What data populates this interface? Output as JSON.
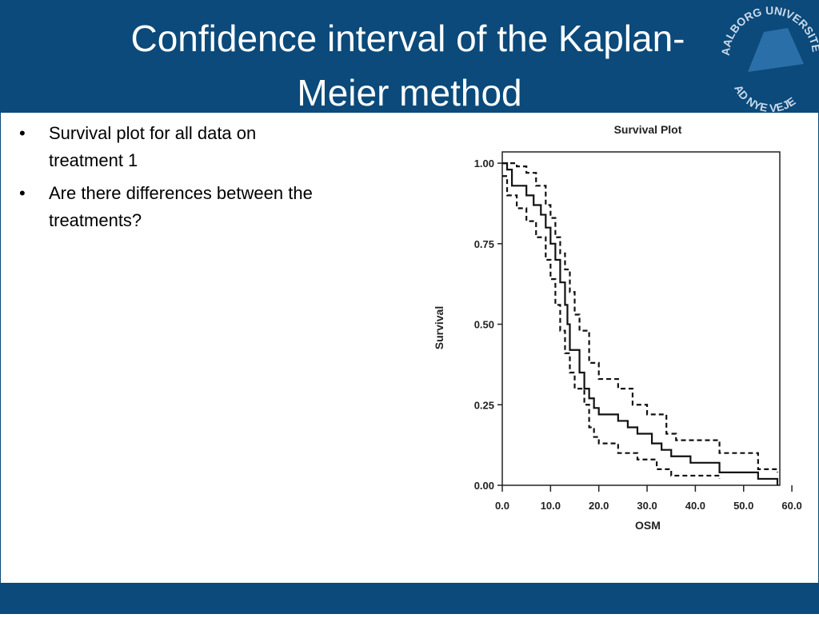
{
  "slide": {
    "title": [
      "Confidence interval of the Kaplan-",
      "Meier method"
    ],
    "bullets": [
      [
        "Survival plot for all data on",
        "treatment 1"
      ],
      [
        "Are there differences between the",
        "treatments?"
      ]
    ],
    "logo": [
      "AALBORG UNIVERSITET",
      "AD NYE VEJE"
    ]
  },
  "chart_data": {
    "type": "line",
    "step": true,
    "title": "Survival Plot",
    "x_label": "OSM",
    "y_label": "Survival",
    "xlim": [
      0,
      57.5
    ],
    "ylim": [
      0,
      1.035
    ],
    "xticks": [
      {
        "value": 0,
        "label": "0.0"
      },
      {
        "value": 10,
        "label": "10.0"
      },
      {
        "value": 20,
        "label": "20.0"
      },
      {
        "value": 30,
        "label": "30.0"
      },
      {
        "value": 40,
        "label": "40.0"
      },
      {
        "value": 50,
        "label": "50.0"
      },
      {
        "value": 60,
        "label": "60.0"
      }
    ],
    "yticks": [
      {
        "value": 0,
        "label": "0.00"
      },
      {
        "value": 0.25,
        "label": "0.25"
      },
      {
        "value": 0.5,
        "label": "0.50"
      },
      {
        "value": 0.75,
        "label": "0.75"
      },
      {
        "value": 1,
        "label": "1.00"
      }
    ],
    "series": [
      {
        "color": "#111111",
        "dash": false,
        "x": [
          0,
          1,
          2,
          5,
          6.5,
          8,
          9,
          10,
          11,
          12,
          13,
          13.5,
          14,
          16,
          17,
          18,
          19,
          20,
          24,
          26,
          28,
          31,
          33,
          35,
          39,
          45,
          53,
          57
        ],
        "values": [
          1.0,
          0.98,
          0.93,
          0.9,
          0.87,
          0.84,
          0.8,
          0.75,
          0.7,
          0.63,
          0.56,
          0.5,
          0.42,
          0.35,
          0.3,
          0.27,
          0.24,
          0.22,
          0.2,
          0.18,
          0.16,
          0.13,
          0.11,
          0.09,
          0.07,
          0.04,
          0.02,
          0.0
        ]
      },
      {
        "color": "#111111",
        "dash": true,
        "x": [
          0,
          3,
          5,
          7,
          9,
          10,
          11,
          12,
          13,
          14,
          15,
          16,
          18,
          20,
          24,
          27,
          30,
          34,
          36,
          45,
          53,
          57
        ],
        "values": [
          1.0,
          0.99,
          0.97,
          0.93,
          0.87,
          0.83,
          0.77,
          0.72,
          0.67,
          0.6,
          0.53,
          0.48,
          0.38,
          0.33,
          0.3,
          0.25,
          0.22,
          0.16,
          0.14,
          0.1,
          0.05,
          0.04
        ]
      },
      {
        "color": "#111111",
        "dash": true,
        "x": [
          0,
          1,
          3,
          5,
          7,
          9,
          10,
          11,
          12,
          13,
          14,
          15,
          17,
          18,
          19,
          20,
          24,
          28,
          32,
          35,
          45
        ],
        "values": [
          0.96,
          0.9,
          0.86,
          0.82,
          0.77,
          0.7,
          0.64,
          0.56,
          0.48,
          0.41,
          0.35,
          0.3,
          0.25,
          0.18,
          0.15,
          0.13,
          0.1,
          0.08,
          0.05,
          0.03,
          0.02
        ]
      }
    ]
  }
}
